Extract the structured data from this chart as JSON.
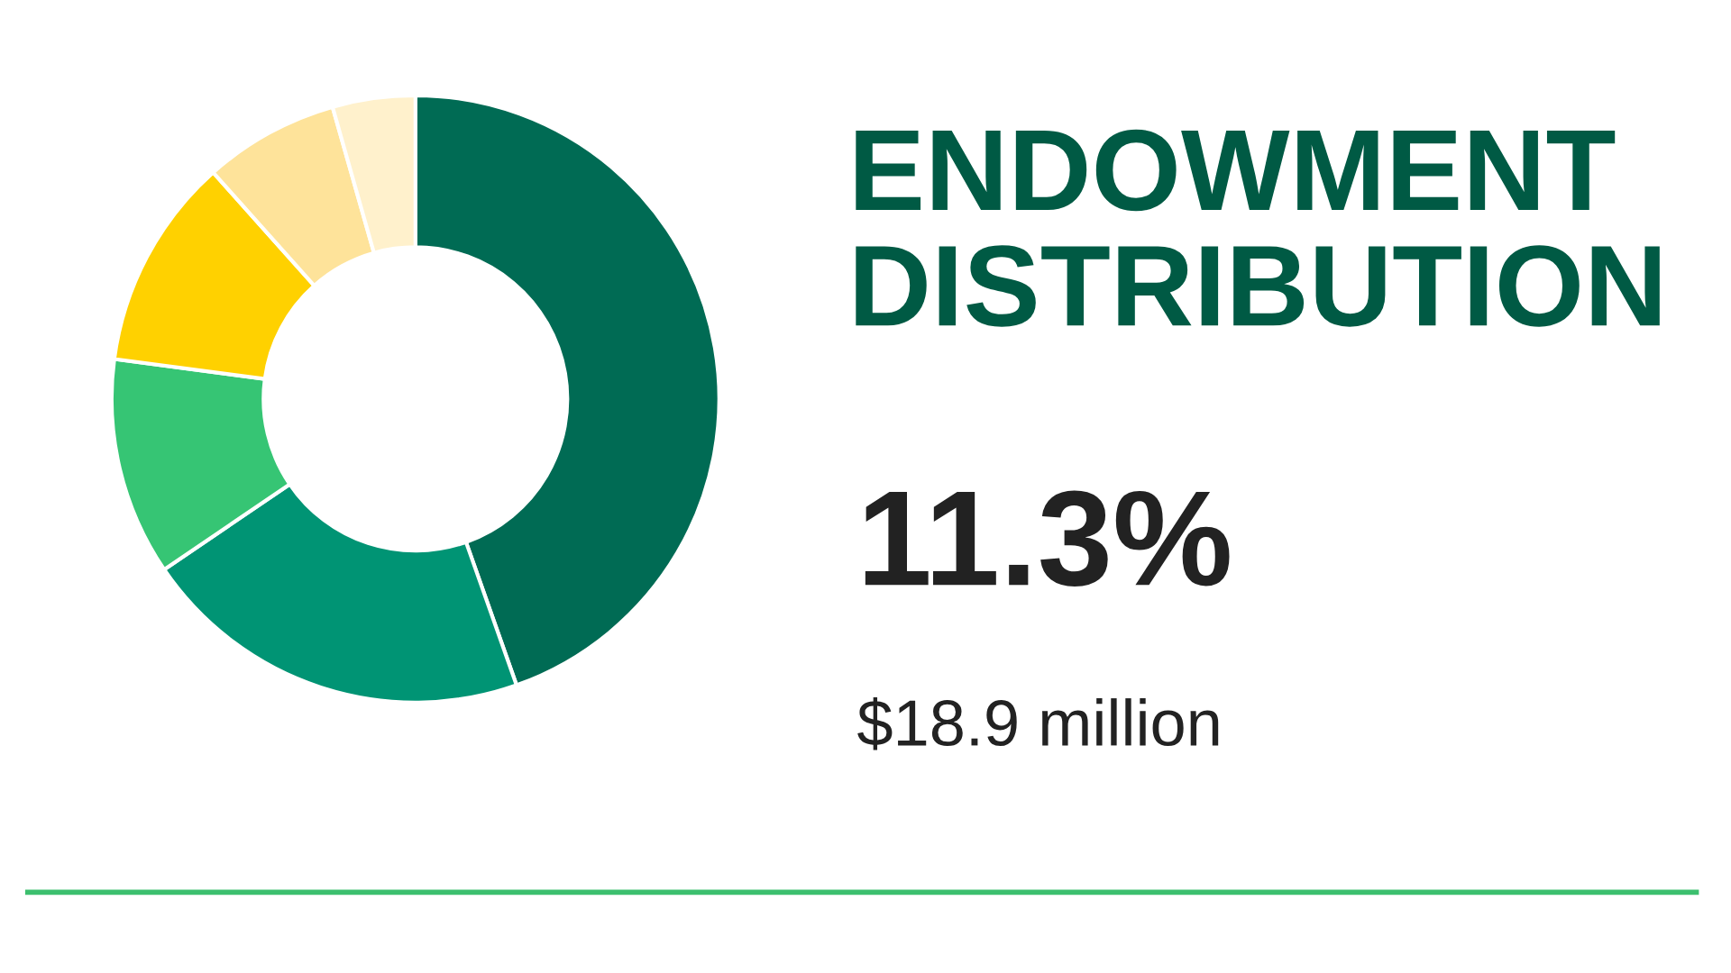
{
  "chart_data": {
    "type": "donut",
    "title": "ENDOWMENT\nDISTRIBUTION",
    "categories": [
      null,
      null,
      null,
      null,
      null,
      null
    ],
    "values": [
      44.6,
      20.9,
      11.6,
      11.3,
      7.2,
      4.4
    ],
    "colors": [
      "#006b54",
      "#009474",
      "#36c574",
      "#ffd100",
      "#fee39a",
      "#fff1cc"
    ],
    "annotations": [
      "11.3%",
      "$18.9 million"
    ]
  }
}
